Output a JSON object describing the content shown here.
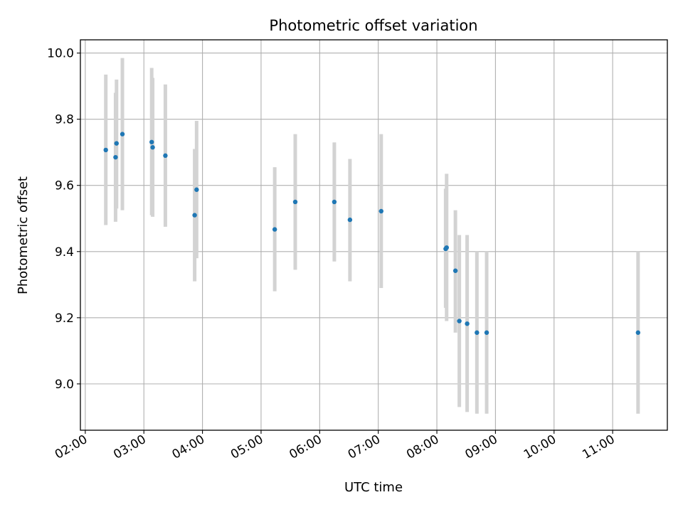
{
  "chart_data": {
    "type": "scatter",
    "title": "Photometric offset variation",
    "xlabel": "UTC time",
    "ylabel": "Photometric offset",
    "x_tick_labels": [
      "02:00",
      "03:00",
      "04:00",
      "05:00",
      "06:00",
      "07:00",
      "08:00",
      "09:00",
      "10:00",
      "11:00"
    ],
    "y_tick_labels": [
      "9.0",
      "9.2",
      "9.4",
      "9.6",
      "9.8",
      "10.0"
    ],
    "xlim": [
      "01:55",
      "11:56"
    ],
    "ylim": [
      8.86,
      10.04
    ],
    "grid": true,
    "colors": {
      "point": "#1f77b4",
      "error_bar": "#d3d3d3",
      "grid": "#b0b0b0"
    },
    "series": [
      {
        "points": [
          {
            "x": "02:21",
            "y": 9.707,
            "yerr_low": 9.48,
            "yerr_high": 9.935
          },
          {
            "x": "02:31",
            "y": 9.685,
            "yerr_low": 9.49,
            "yerr_high": 9.88
          },
          {
            "x": "02:32",
            "y": 9.727,
            "yerr_low": 9.53,
            "yerr_high": 9.92
          },
          {
            "x": "02:38",
            "y": 9.755,
            "yerr_low": 9.525,
            "yerr_high": 9.985
          },
          {
            "x": "03:08",
            "y": 9.731,
            "yerr_low": 9.51,
            "yerr_high": 9.955
          },
          {
            "x": "03:09",
            "y": 9.715,
            "yerr_low": 9.505,
            "yerr_high": 9.925
          },
          {
            "x": "03:22",
            "y": 9.69,
            "yerr_low": 9.475,
            "yerr_high": 9.905
          },
          {
            "x": "03:52",
            "y": 9.51,
            "yerr_low": 9.31,
            "yerr_high": 9.71
          },
          {
            "x": "03:54",
            "y": 9.587,
            "yerr_low": 9.38,
            "yerr_high": 9.795
          },
          {
            "x": "05:14",
            "y": 9.467,
            "yerr_low": 9.28,
            "yerr_high": 9.655
          },
          {
            "x": "05:35",
            "y": 9.55,
            "yerr_low": 9.345,
            "yerr_high": 9.755
          },
          {
            "x": "06:15",
            "y": 9.55,
            "yerr_low": 9.37,
            "yerr_high": 9.73
          },
          {
            "x": "06:31",
            "y": 9.496,
            "yerr_low": 9.31,
            "yerr_high": 9.68
          },
          {
            "x": "07:03",
            "y": 9.522,
            "yerr_low": 9.29,
            "yerr_high": 9.755
          },
          {
            "x": "08:09",
            "y": 9.408,
            "yerr_low": 9.23,
            "yerr_high": 9.59
          },
          {
            "x": "08:10",
            "y": 9.412,
            "yerr_low": 9.19,
            "yerr_high": 9.635
          },
          {
            "x": "08:19",
            "y": 9.342,
            "yerr_low": 9.155,
            "yerr_high": 9.525
          },
          {
            "x": "08:23",
            "y": 9.19,
            "yerr_low": 8.93,
            "yerr_high": 9.45
          },
          {
            "x": "08:31",
            "y": 9.182,
            "yerr_low": 8.915,
            "yerr_high": 9.45
          },
          {
            "x": "08:41",
            "y": 9.155,
            "yerr_low": 8.91,
            "yerr_high": 9.4
          },
          {
            "x": "08:51",
            "y": 9.155,
            "yerr_low": 8.91,
            "yerr_high": 9.4
          },
          {
            "x": "11:26",
            "y": 9.155,
            "yerr_low": 8.91,
            "yerr_high": 9.4
          }
        ]
      }
    ]
  }
}
